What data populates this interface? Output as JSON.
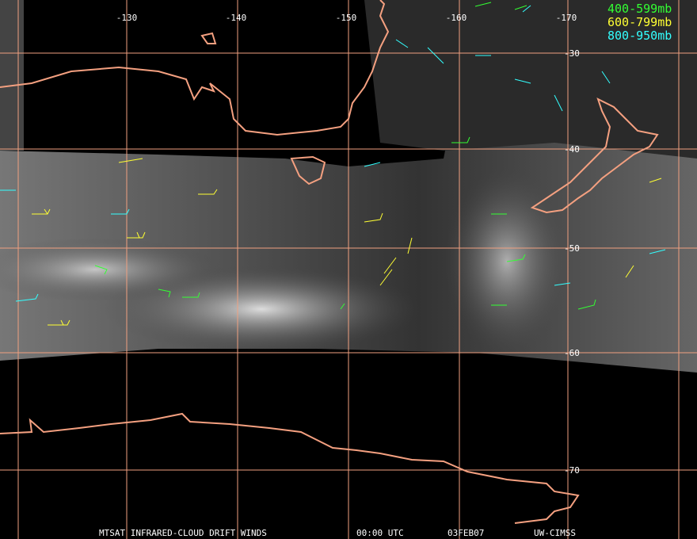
{
  "map": {
    "longitude_labels": [
      "-130",
      "-140",
      "-150",
      "-160",
      "-170"
    ],
    "latitude_labels": [
      "-30",
      "-40",
      "-50",
      "-60",
      "-70"
    ],
    "legend": [
      {
        "label": "400-599mb",
        "color": "#33ff33"
      },
      {
        "label": "600-799mb",
        "color": "#ffff33"
      },
      {
        "label": "800-950mb",
        "color": "#33ffff"
      }
    ],
    "footer": {
      "product": "MTSAT INFRARED-CLOUD DRIFT WINDS",
      "time": "00:00 UTC",
      "date": "03FEB07",
      "source": "UW-CIMSS"
    }
  }
}
